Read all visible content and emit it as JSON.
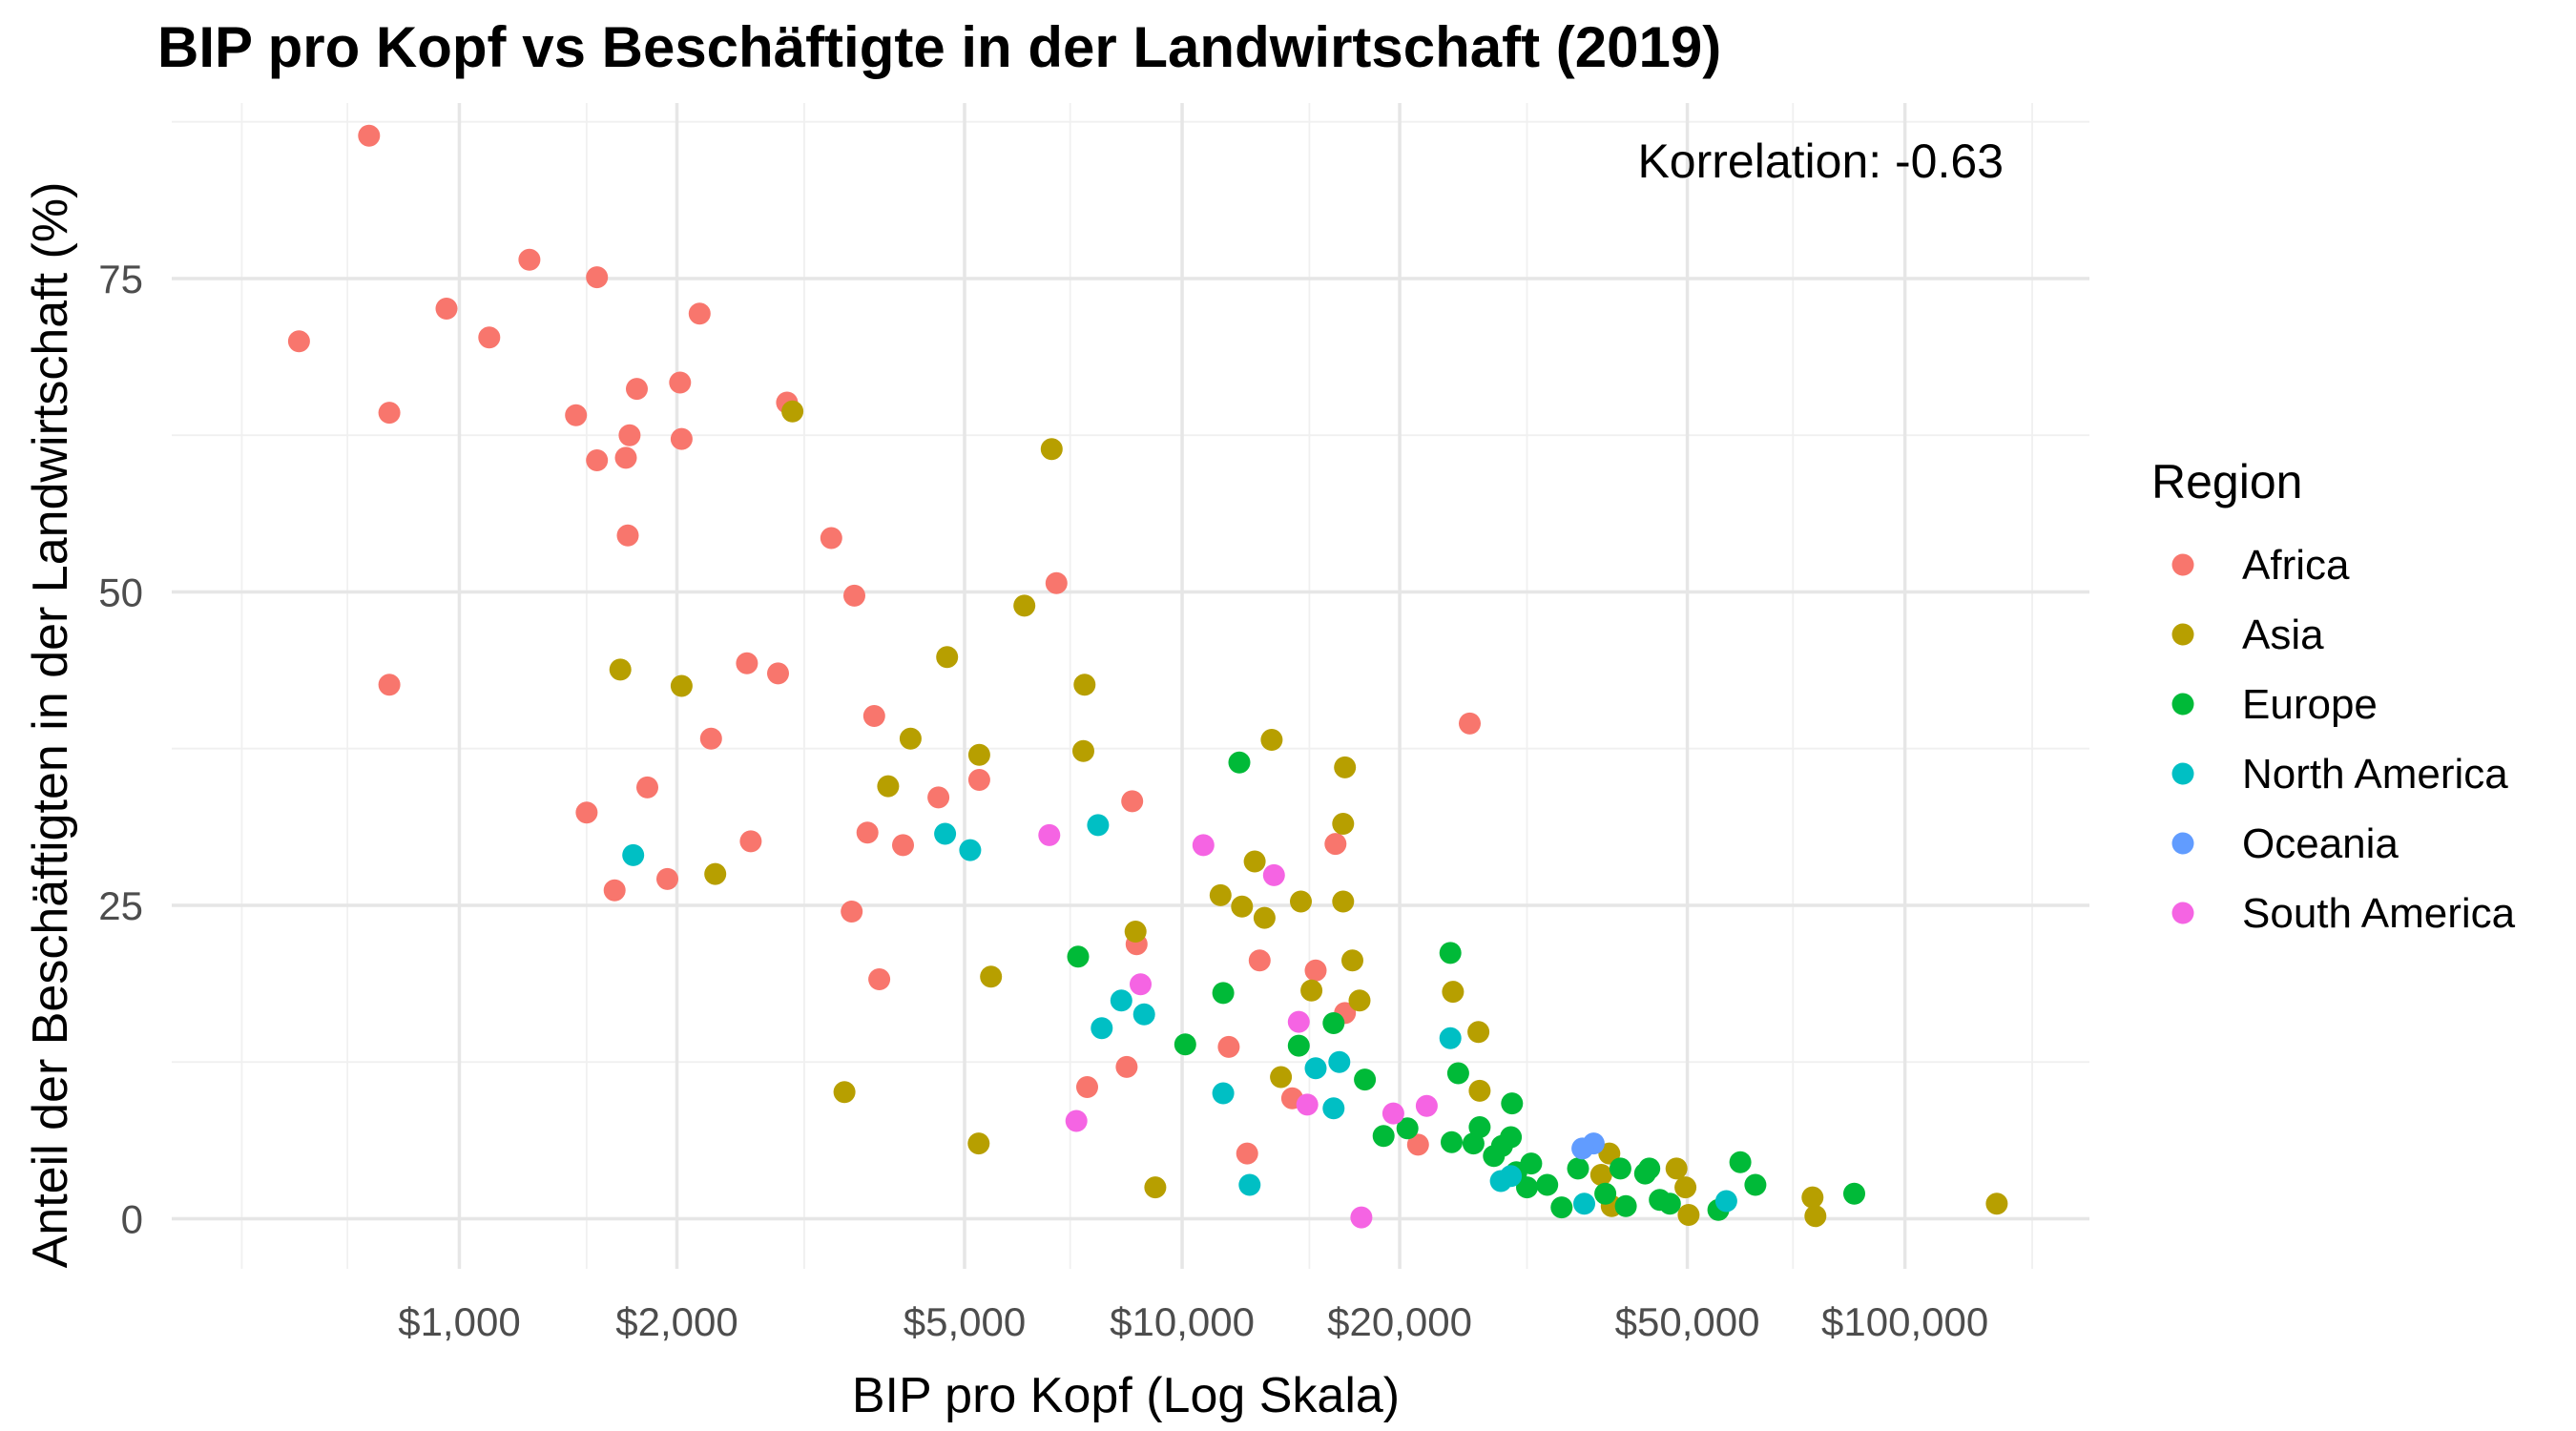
{
  "chart_data": {
    "type": "scatter",
    "title": "BIP pro Kopf vs Beschäftigte in der Landwirtschaft (2019)",
    "xlabel": "BIP pro Kopf (Log Skala)",
    "ylabel": "Anteil der Beschäftigten in der Landwirtschaft (%)",
    "annotation": "Korrelation: -0.63",
    "x_scale": "log10",
    "xlim": [
      400,
      180000
    ],
    "ylim": [
      -4,
      89
    ],
    "x_ticks": [
      1000,
      2000,
      5000,
      10000,
      20000,
      50000,
      100000
    ],
    "x_tick_labels": [
      "$1,000",
      "$2,000",
      "$5,000",
      "$10,000",
      "$20,000",
      "$50,000",
      "$100,000"
    ],
    "y_ticks": [
      0,
      25,
      50,
      75
    ],
    "y_tick_labels": [
      "0",
      "25",
      "50",
      "75"
    ],
    "grid": true,
    "legend": {
      "title": "Region",
      "position": "right"
    },
    "series": [
      {
        "name": "Africa",
        "color": "#F8766D",
        "points": [
          [
            750,
            86.4
          ],
          [
            600,
            70
          ],
          [
            960,
            72.6
          ],
          [
            1100,
            70.3
          ],
          [
            1250,
            76.5
          ],
          [
            1550,
            75.1
          ],
          [
            2150,
            72.2
          ],
          [
            800,
            64.3
          ],
          [
            1450,
            64.1
          ],
          [
            1550,
            60.5
          ],
          [
            1700,
            60.7
          ],
          [
            1720,
            62.5
          ],
          [
            1760,
            66.2
          ],
          [
            2020,
            66.7
          ],
          [
            2030,
            62.2
          ],
          [
            2840,
            65.1
          ],
          [
            1710,
            54.5
          ],
          [
            3270,
            54.3
          ],
          [
            3520,
            49.7
          ],
          [
            6700,
            50.7
          ],
          [
            800,
            42.6
          ],
          [
            2500,
            44.3
          ],
          [
            2760,
            43.5
          ],
          [
            3750,
            40.1
          ],
          [
            2230,
            38.3
          ],
          [
            1820,
            34.4
          ],
          [
            1500,
            32.4
          ],
          [
            3670,
            30.8
          ],
          [
            4110,
            29.8
          ],
          [
            4600,
            33.6
          ],
          [
            5240,
            35
          ],
          [
            2530,
            30.1
          ],
          [
            1940,
            27.1
          ],
          [
            1640,
            26.2
          ],
          [
            3490,
            24.5
          ],
          [
            3810,
            19.1
          ],
          [
            8530,
            33.3
          ],
          [
            8650,
            21.9
          ],
          [
            8380,
            12.1
          ],
          [
            7390,
            10.5
          ],
          [
            11600,
            13.7
          ],
          [
            12300,
            5.2
          ],
          [
            12800,
            20.6
          ],
          [
            15300,
            19.8
          ],
          [
            16300,
            29.9
          ],
          [
            16800,
            16.4
          ],
          [
            14200,
            9.6
          ],
          [
            21200,
            5.9
          ],
          [
            25000,
            39.5
          ]
        ]
      },
      {
        "name": "Asia",
        "color": "#B79F00",
        "points": [
          [
            2890,
            64.4
          ],
          [
            6600,
            61.4
          ],
          [
            6050,
            48.9
          ],
          [
            1670,
            43.8
          ],
          [
            2030,
            42.5
          ],
          [
            4730,
            44.8
          ],
          [
            7330,
            42.6
          ],
          [
            7300,
            37.3
          ],
          [
            4210,
            38.3
          ],
          [
            5240,
            37
          ],
          [
            3920,
            34.5
          ],
          [
            2260,
            27.5
          ],
          [
            3410,
            10.1
          ],
          [
            5230,
            6
          ],
          [
            5440,
            19.3
          ],
          [
            8620,
            22.9
          ],
          [
            9180,
            2.5
          ],
          [
            11300,
            25.8
          ],
          [
            12100,
            24.9
          ],
          [
            12600,
            28.5
          ],
          [
            13000,
            24
          ],
          [
            13300,
            38.2
          ],
          [
            14600,
            25.3
          ],
          [
            15100,
            18.2
          ],
          [
            13700,
            11.3
          ],
          [
            16800,
            36
          ],
          [
            16700,
            31.5
          ],
          [
            16700,
            25.3
          ],
          [
            17200,
            20.6
          ],
          [
            17600,
            17.4
          ],
          [
            23700,
            18.1
          ],
          [
            25700,
            14.9
          ],
          [
            25800,
            10.2
          ],
          [
            39000,
            5.2
          ],
          [
            38000,
            3.5
          ],
          [
            39300,
            1
          ],
          [
            48300,
            4
          ],
          [
            49700,
            2.5
          ],
          [
            50200,
            0.3
          ],
          [
            74500,
            1.7
          ],
          [
            75200,
            0.2
          ],
          [
            134000,
            1.2
          ]
        ]
      },
      {
        "name": "Europe",
        "color": "#00BA38",
        "points": [
          [
            12000,
            36.4
          ],
          [
            7180,
            20.9
          ],
          [
            10100,
            13.9
          ],
          [
            11400,
            18
          ],
          [
            14500,
            13.8
          ],
          [
            16200,
            15.6
          ],
          [
            17900,
            11.1
          ],
          [
            19000,
            6.6
          ],
          [
            20500,
            7.2
          ],
          [
            23500,
            21.2
          ],
          [
            23600,
            6.1
          ],
          [
            24100,
            11.6
          ],
          [
            25300,
            6
          ],
          [
            25800,
            7.3
          ],
          [
            27000,
            5
          ],
          [
            27700,
            5.8
          ],
          [
            28600,
            9.2
          ],
          [
            28500,
            6.5
          ],
          [
            29000,
            3.7
          ],
          [
            30000,
            2.5
          ],
          [
            30400,
            4.4
          ],
          [
            32000,
            2.7
          ],
          [
            33500,
            0.9
          ],
          [
            35300,
            4
          ],
          [
            38500,
            2
          ],
          [
            40400,
            4
          ],
          [
            41100,
            1
          ],
          [
            43700,
            3.6
          ],
          [
            44300,
            4
          ],
          [
            45800,
            1.5
          ],
          [
            47300,
            1.2
          ],
          [
            55200,
            0.7
          ],
          [
            59200,
            4.5
          ],
          [
            62100,
            2.7
          ],
          [
            85100,
            2
          ]
        ]
      },
      {
        "name": "North America",
        "color": "#00BFC4",
        "points": [
          [
            1740,
            29
          ],
          [
            4700,
            30.7
          ],
          [
            5090,
            29.4
          ],
          [
            7650,
            31.4
          ],
          [
            7740,
            15.2
          ],
          [
            8240,
            17.4
          ],
          [
            8860,
            16.3
          ],
          [
            11400,
            10
          ],
          [
            12400,
            2.7
          ],
          [
            15300,
            12
          ],
          [
            16200,
            8.8
          ],
          [
            16500,
            12.5
          ],
          [
            23500,
            14.4
          ],
          [
            27600,
            3
          ],
          [
            28500,
            3.4
          ],
          [
            36000,
            1.2
          ],
          [
            56600,
            1.4
          ]
        ]
      },
      {
        "name": "Oceania",
        "color": "#619CFF",
        "points": [
          [
            37100,
            6
          ],
          [
            35800,
            5.6
          ]
        ]
      },
      {
        "name": "South America",
        "color": "#F564E3",
        "points": [
          [
            6550,
            30.6
          ],
          [
            10700,
            29.8
          ],
          [
            13400,
            27.4
          ],
          [
            8760,
            18.7
          ],
          [
            14500,
            15.7
          ],
          [
            7140,
            7.8
          ],
          [
            14900,
            9.1
          ],
          [
            17700,
            0.1
          ],
          [
            19600,
            8.4
          ],
          [
            21800,
            9
          ]
        ]
      }
    ]
  }
}
